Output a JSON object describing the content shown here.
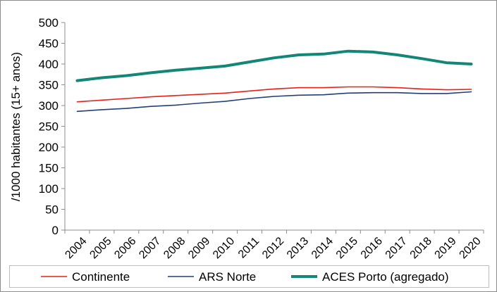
{
  "chart_data": {
    "type": "line",
    "title": "",
    "xlabel": "",
    "ylabel": "/1000 habitantes (15+ anos)",
    "categories": [
      "2004",
      "2005",
      "2006",
      "2007",
      "2008",
      "2009",
      "2010",
      "2011",
      "2012",
      "2013",
      "2014",
      "2015",
      "2016",
      "2017",
      "2018",
      "2019",
      "2020"
    ],
    "ylim": [
      0,
      500
    ],
    "yticks": [
      "0",
      "50",
      "100",
      "150",
      "200",
      "250",
      "300",
      "350",
      "400",
      "450",
      "500"
    ],
    "grid": false,
    "legend_position": "bottom",
    "series": [
      {
        "name": "Continente",
        "color": "#e8201a",
        "values": [
          309,
          313,
          317,
          321,
          324,
          327,
          330,
          335,
          340,
          343,
          343,
          345,
          345,
          343,
          340,
          338,
          339
        ]
      },
      {
        "name": "ARS Norte",
        "color": "#243f73",
        "values": [
          286,
          290,
          293,
          298,
          301,
          306,
          310,
          317,
          322,
          325,
          326,
          330,
          331,
          331,
          329,
          329,
          333
        ]
      },
      {
        "name": "ACES Porto (agregado)",
        "color": "#138777",
        "values": [
          360,
          367,
          372,
          379,
          385,
          390,
          395,
          405,
          415,
          422,
          424,
          431,
          429,
          422,
          413,
          403,
          400
        ]
      }
    ]
  }
}
